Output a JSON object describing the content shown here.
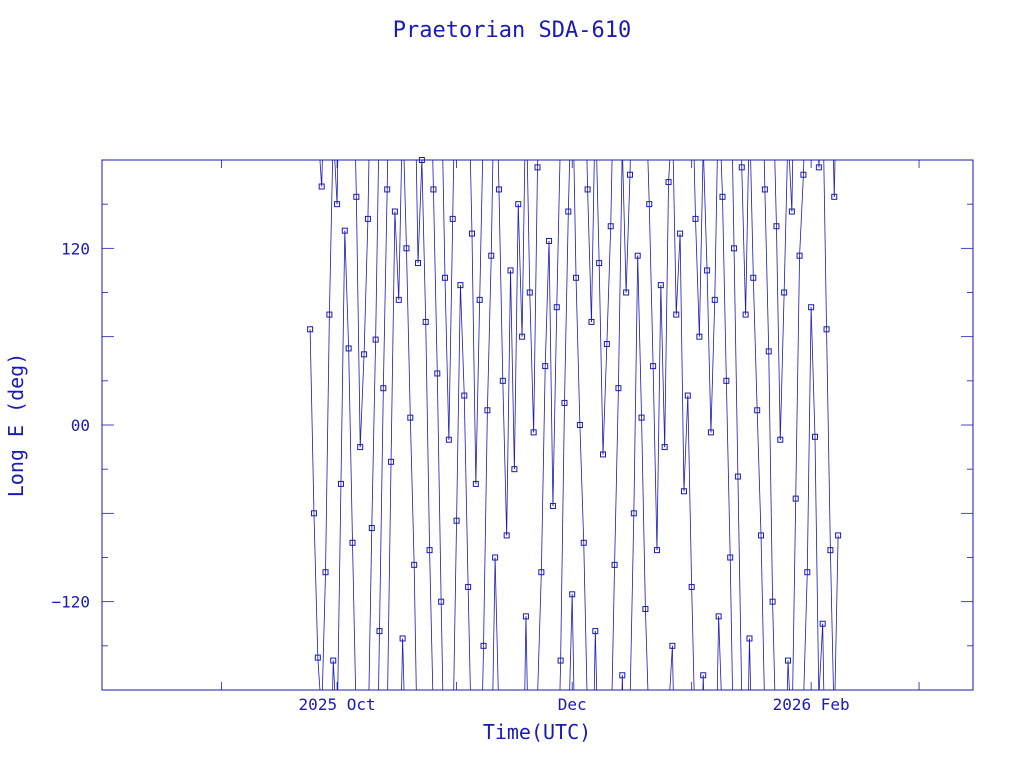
{
  "chart_data": {
    "type": "line",
    "title": "Praetorian SDA-610",
    "xlabel": "Time(UTC)",
    "ylabel": "Long E (deg)",
    "x_range": [
      "2025-08-01",
      "2026-03-15"
    ],
    "ylim": [
      -180,
      180
    ],
    "x_tick_labels": [
      {
        "date": "2025-10-01",
        "label": "2025 Oct"
      },
      {
        "date": "2025-12-01",
        "label": "Dec"
      },
      {
        "date": "2026-02-01",
        "label": "2026 Feb"
      }
    ],
    "y_tick_labels": [
      {
        "value": 120,
        "label": "120"
      },
      {
        "value": 0,
        "label": "00"
      },
      {
        "value": -120,
        "label": "−120"
      }
    ],
    "grid": false,
    "colors": {
      "line": "#1a1ab4",
      "marker": "#1a1ab4",
      "axis": "#1a1ab4",
      "text": "#1a1ab4"
    },
    "series": [
      {
        "marker": "square",
        "points": [
          [
            "2025-09-24",
            65
          ],
          [
            "2025-09-25",
            -60
          ],
          [
            "2025-09-26",
            -158
          ],
          [
            "2025-09-27",
            162
          ],
          [
            "2025-09-28",
            -100
          ],
          [
            "2025-09-29",
            75
          ],
          [
            "2025-09-30",
            -160
          ],
          [
            "2025-10-01",
            150
          ],
          [
            "2025-10-02",
            -40
          ],
          [
            "2025-10-03",
            132
          ],
          [
            "2025-10-04",
            52
          ],
          [
            "2025-10-05",
            -80
          ],
          [
            "2025-10-06",
            155
          ],
          [
            "2025-10-07",
            -15
          ],
          [
            "2025-10-08",
            48
          ],
          [
            "2025-10-09",
            140
          ],
          [
            "2025-10-10",
            -70
          ],
          [
            "2025-10-11",
            58
          ],
          [
            "2025-10-12",
            -140
          ],
          [
            "2025-10-13",
            25
          ],
          [
            "2025-10-14",
            160
          ],
          [
            "2025-10-15",
            -25
          ],
          [
            "2025-10-16",
            145
          ],
          [
            "2025-10-17",
            85
          ],
          [
            "2025-10-18",
            -145
          ],
          [
            "2025-10-19",
            120
          ],
          [
            "2025-10-20",
            5
          ],
          [
            "2025-10-21",
            -95
          ],
          [
            "2025-10-22",
            110
          ],
          [
            "2025-10-23",
            180
          ],
          [
            "2025-10-24",
            70
          ],
          [
            "2025-10-25",
            -85
          ],
          [
            "2025-10-26",
            160
          ],
          [
            "2025-10-27",
            35
          ],
          [
            "2025-10-28",
            -120
          ],
          [
            "2025-10-29",
            100
          ],
          [
            "2025-10-30",
            -10
          ],
          [
            "2025-10-31",
            140
          ],
          [
            "2025-11-01",
            -65
          ],
          [
            "2025-11-02",
            95
          ],
          [
            "2025-11-03",
            20
          ],
          [
            "2025-11-04",
            -110
          ],
          [
            "2025-11-05",
            130
          ],
          [
            "2025-11-06",
            -40
          ],
          [
            "2025-11-07",
            85
          ],
          [
            "2025-11-08",
            -150
          ],
          [
            "2025-11-09",
            10
          ],
          [
            "2025-11-10",
            115
          ],
          [
            "2025-11-11",
            -90
          ],
          [
            "2025-11-12",
            160
          ],
          [
            "2025-11-13",
            30
          ],
          [
            "2025-11-14",
            -75
          ],
          [
            "2025-11-15",
            105
          ],
          [
            "2025-11-16",
            -30
          ],
          [
            "2025-11-17",
            150
          ],
          [
            "2025-11-18",
            60
          ],
          [
            "2025-11-19",
            -130
          ],
          [
            "2025-11-20",
            90
          ],
          [
            "2025-11-21",
            -5
          ],
          [
            "2025-11-22",
            175
          ],
          [
            "2025-11-23",
            -100
          ],
          [
            "2025-11-24",
            40
          ],
          [
            "2025-11-25",
            125
          ],
          [
            "2025-11-26",
            -55
          ],
          [
            "2025-11-27",
            80
          ],
          [
            "2025-11-28",
            -160
          ],
          [
            "2025-11-29",
            15
          ],
          [
            "2025-11-30",
            145
          ],
          [
            "2025-12-01",
            -115
          ],
          [
            "2025-12-02",
            100
          ],
          [
            "2025-12-03",
            0
          ],
          [
            "2025-12-04",
            -80
          ],
          [
            "2025-12-05",
            160
          ],
          [
            "2025-12-06",
            70
          ],
          [
            "2025-12-07",
            -140
          ],
          [
            "2025-12-08",
            110
          ],
          [
            "2025-12-09",
            -20
          ],
          [
            "2025-12-10",
            55
          ],
          [
            "2025-12-11",
            135
          ],
          [
            "2025-12-12",
            -95
          ],
          [
            "2025-12-13",
            25
          ],
          [
            "2025-12-14",
            -170
          ],
          [
            "2025-12-15",
            90
          ],
          [
            "2025-12-16",
            170
          ],
          [
            "2025-12-17",
            -60
          ],
          [
            "2025-12-18",
            115
          ],
          [
            "2025-12-19",
            5
          ],
          [
            "2025-12-20",
            -125
          ],
          [
            "2025-12-21",
            150
          ],
          [
            "2025-12-22",
            40
          ],
          [
            "2025-12-23",
            -85
          ],
          [
            "2025-12-24",
            95
          ],
          [
            "2025-12-25",
            -15
          ],
          [
            "2025-12-26",
            165
          ],
          [
            "2025-12-27",
            -150
          ],
          [
            "2025-12-28",
            75
          ],
          [
            "2025-12-29",
            130
          ],
          [
            "2025-12-30",
            -45
          ],
          [
            "2025-12-31",
            20
          ],
          [
            "2026-01-01",
            -110
          ],
          [
            "2026-01-02",
            140
          ],
          [
            "2026-01-03",
            60
          ],
          [
            "2026-01-04",
            -170
          ],
          [
            "2026-01-05",
            105
          ],
          [
            "2026-01-06",
            -5
          ],
          [
            "2026-01-07",
            85
          ],
          [
            "2026-01-08",
            -130
          ],
          [
            "2026-01-09",
            155
          ],
          [
            "2026-01-10",
            30
          ],
          [
            "2026-01-11",
            -90
          ],
          [
            "2026-01-12",
            120
          ],
          [
            "2026-01-13",
            -35
          ],
          [
            "2026-01-14",
            175
          ],
          [
            "2026-01-15",
            75
          ],
          [
            "2026-01-16",
            -145
          ],
          [
            "2026-01-17",
            100
          ],
          [
            "2026-01-18",
            10
          ],
          [
            "2026-01-19",
            -75
          ],
          [
            "2026-01-20",
            160
          ],
          [
            "2026-01-21",
            50
          ],
          [
            "2026-01-22",
            -120
          ],
          [
            "2026-01-23",
            135
          ],
          [
            "2026-01-24",
            -10
          ],
          [
            "2026-01-25",
            90
          ],
          [
            "2026-01-26",
            -160
          ],
          [
            "2026-01-27",
            145
          ],
          [
            "2026-01-28",
            -50
          ],
          [
            "2026-01-29",
            115
          ],
          [
            "2026-01-30",
            170
          ],
          [
            "2026-01-31",
            -100
          ],
          [
            "2026-02-01",
            80
          ],
          [
            "2026-02-02",
            -8
          ],
          [
            "2026-02-03",
            175
          ],
          [
            "2026-02-04",
            -135
          ],
          [
            "2026-02-05",
            65
          ],
          [
            "2026-02-06",
            -85
          ],
          [
            "2026-02-07",
            155
          ],
          [
            "2026-02-08",
            -75
          ]
        ]
      }
    ]
  }
}
